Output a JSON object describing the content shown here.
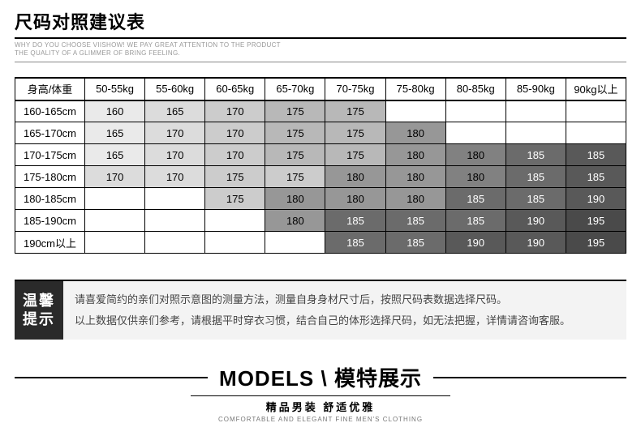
{
  "header": {
    "title": "尺码对照建议表",
    "subtitle_l1": "WHY DO YOU CHOOSE VIISHOW! WE PAY GREAT ATTENTION TO THE PRODUCT",
    "subtitle_l2": "THE QUALITY OF A GLIMMER OF BRING FEELING."
  },
  "table": {
    "corner": "身高/体重",
    "columns": [
      "50-55kg",
      "55-60kg",
      "60-65kg",
      "65-70kg",
      "70-75kg",
      "75-80kg",
      "80-85kg",
      "85-90kg",
      "90kg以上"
    ],
    "rows": [
      "160-165cm",
      "165-170cm",
      "170-175cm",
      "175-180cm",
      "180-185cm",
      "185-190cm",
      "190cm以上"
    ],
    "cells": [
      [
        "160",
        "165",
        "170",
        "175",
        "175",
        "",
        "",
        "",
        ""
      ],
      [
        "165",
        "170",
        "170",
        "175",
        "175",
        "180",
        "",
        "",
        ""
      ],
      [
        "165",
        "170",
        "170",
        "175",
        "175",
        "180",
        "180",
        "185",
        "185"
      ],
      [
        "170",
        "170",
        "175",
        "175",
        "180",
        "180",
        "180",
        "185",
        "185"
      ],
      [
        "",
        "",
        "175",
        "180",
        "180",
        "180",
        "185",
        "185",
        "190"
      ],
      [
        "",
        "",
        "",
        "180",
        "185",
        "185",
        "185",
        "190",
        "195"
      ],
      [
        "",
        "",
        "",
        "",
        "185",
        "185",
        "190",
        "190",
        "195"
      ]
    ],
    "cell_bg": [
      [
        "#eaeaea",
        "#dcdcdc",
        "#cccccc",
        "#b8b8b8",
        "#b8b8b8",
        "",
        "",
        "",
        ""
      ],
      [
        "#eaeaea",
        "#dcdcdc",
        "#cccccc",
        "#b8b8b8",
        "#b8b8b8",
        "#979797",
        "",
        "",
        ""
      ],
      [
        "#eaeaea",
        "#dcdcdc",
        "#cccccc",
        "#b8b8b8",
        "#b8b8b8",
        "#979797",
        "#818181",
        "#6b6b6b",
        "#595959"
      ],
      [
        "#dcdcdc",
        "#dcdcdc",
        "#cccccc",
        "#cccccc",
        "#979797",
        "#979797",
        "#818181",
        "#6b6b6b",
        "#595959"
      ],
      [
        "",
        "",
        "#cccccc",
        "#979797",
        "#979797",
        "#979797",
        "#6b6b6b",
        "#6b6b6b",
        "#595959"
      ],
      [
        "",
        "",
        "",
        "#979797",
        "#6b6b6b",
        "#6b6b6b",
        "#6b6b6b",
        "#595959",
        "#4a4a4a"
      ],
      [
        "",
        "",
        "",
        "",
        "#6b6b6b",
        "#6b6b6b",
        "#595959",
        "#595959",
        "#4a4a4a"
      ]
    ],
    "cell_fg": [
      [
        "#000",
        "#000",
        "#000",
        "#000",
        "#000",
        "",
        "",
        "",
        ""
      ],
      [
        "#000",
        "#000",
        "#000",
        "#000",
        "#000",
        "#000",
        "",
        "",
        ""
      ],
      [
        "#000",
        "#000",
        "#000",
        "#000",
        "#000",
        "#000",
        "#000",
        "#fff",
        "#fff"
      ],
      [
        "#000",
        "#000",
        "#000",
        "#000",
        "#000",
        "#000",
        "#000",
        "#fff",
        "#fff"
      ],
      [
        "",
        "",
        "#000",
        "#000",
        "#000",
        "#000",
        "#fff",
        "#fff",
        "#fff"
      ],
      [
        "",
        "",
        "",
        "#000",
        "#fff",
        "#fff",
        "#fff",
        "#fff",
        "#fff"
      ],
      [
        "",
        "",
        "",
        "",
        "#fff",
        "#fff",
        "#fff",
        "#fff",
        "#fff"
      ]
    ]
  },
  "notice": {
    "label_l1": "温馨",
    "label_l2": "提示",
    "line1": "请喜爱简约的亲们对照示意图的测量方法，测量自身身材尺寸后，按照尺码表数据选择尺码。",
    "line2": "以上数据仅供亲们参考，请根据平时穿衣习惯，结合自己的体形选择尺码，如无法把握，详情请咨询客服。"
  },
  "models": {
    "title": "MODELS \\ 模特展示",
    "sub": "精品男装 舒适优雅",
    "en": "COMFORTABLE AND ELEGANT FINE MEN'S CLOTHING"
  }
}
